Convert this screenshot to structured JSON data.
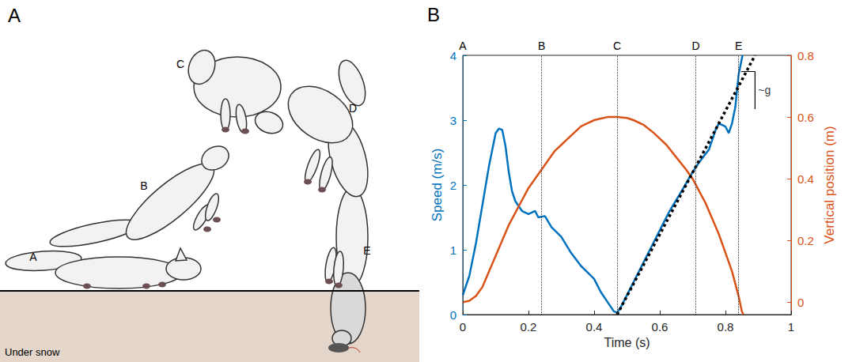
{
  "panel_a": {
    "panel_label": "A",
    "pose_labels": [
      "A",
      "B",
      "C",
      "D",
      "E"
    ],
    "ground_label": "Under snow"
  },
  "chart_data": {
    "type": "line",
    "panel_label": "B",
    "x_label": "Time (s)",
    "y_label": "Speed (m/s)",
    "y2_label": "Vertical position (m)",
    "xlim": [
      0,
      1
    ],
    "xticks": [
      0,
      0.2,
      0.4,
      0.6,
      0.8,
      1
    ],
    "ylim": [
      0,
      4
    ],
    "yticks": [
      0,
      1,
      2,
      3,
      4
    ],
    "y2lim": [
      -0.04,
      0.8
    ],
    "y2ticks": [
      0,
      0.2,
      0.4,
      0.6,
      0.8
    ],
    "grid": false,
    "series": [
      {
        "color": "#0072bd",
        "axis": "y",
        "x": [
          0,
          0.02,
          0.04,
          0.06,
          0.08,
          0.1,
          0.11,
          0.12,
          0.13,
          0.14,
          0.15,
          0.16,
          0.18,
          0.2,
          0.22,
          0.23,
          0.25,
          0.27,
          0.3,
          0.33,
          0.36,
          0.38,
          0.4,
          0.42,
          0.44,
          0.46,
          0.47,
          0.48,
          0.5,
          0.52,
          0.55,
          0.58,
          0.6,
          0.63,
          0.66,
          0.7,
          0.72,
          0.75,
          0.77,
          0.78,
          0.8,
          0.81,
          0.82,
          0.83,
          0.84,
          0.852
        ],
        "values": [
          0.3,
          0.6,
          1.1,
          1.7,
          2.3,
          2.8,
          2.87,
          2.85,
          2.6,
          2.2,
          1.9,
          1.75,
          1.6,
          1.55,
          1.6,
          1.5,
          1.52,
          1.35,
          1.2,
          0.95,
          0.75,
          0.65,
          0.55,
          0.35,
          0.2,
          0.05,
          0.03,
          0.1,
          0.3,
          0.5,
          0.8,
          1.1,
          1.3,
          1.6,
          1.85,
          2.2,
          2.35,
          2.55,
          2.85,
          2.95,
          2.9,
          2.8,
          2.95,
          3.2,
          3.7,
          4.0
        ]
      },
      {
        "color": "#d95319",
        "axis": "y2",
        "x": [
          0,
          0.02,
          0.04,
          0.06,
          0.08,
          0.1,
          0.12,
          0.14,
          0.16,
          0.18,
          0.2,
          0.22,
          0.24,
          0.26,
          0.28,
          0.3,
          0.32,
          0.34,
          0.36,
          0.38,
          0.4,
          0.42,
          0.44,
          0.47,
          0.5,
          0.52,
          0.55,
          0.58,
          0.6,
          0.62,
          0.65,
          0.68,
          0.7,
          0.72,
          0.74,
          0.76,
          0.78,
          0.8,
          0.82,
          0.84,
          0.85,
          0.855
        ],
        "values": [
          0,
          0.005,
          0.02,
          0.05,
          0.1,
          0.15,
          0.2,
          0.25,
          0.29,
          0.33,
          0.37,
          0.4,
          0.43,
          0.46,
          0.49,
          0.51,
          0.53,
          0.55,
          0.57,
          0.58,
          0.59,
          0.595,
          0.6,
          0.6,
          0.597,
          0.59,
          0.575,
          0.55,
          0.53,
          0.51,
          0.47,
          0.43,
          0.4,
          0.36,
          0.32,
          0.27,
          0.22,
          0.16,
          0.1,
          0.02,
          -0.03,
          -0.04
        ]
      }
    ],
    "events": {
      "labels": [
        "A",
        "B",
        "C",
        "D",
        "E"
      ],
      "x": [
        0,
        0.236,
        0.472,
        0.708,
        0.839
      ]
    },
    "fit_line": {
      "x": [
        0.47,
        0.89
      ],
      "values": [
        0,
        4
      ]
    },
    "slope_marker": {
      "label": "~g",
      "x": [
        0.848,
        0.89,
        0.89
      ],
      "values": [
        3.75,
        3.75,
        3.17
      ]
    }
  }
}
